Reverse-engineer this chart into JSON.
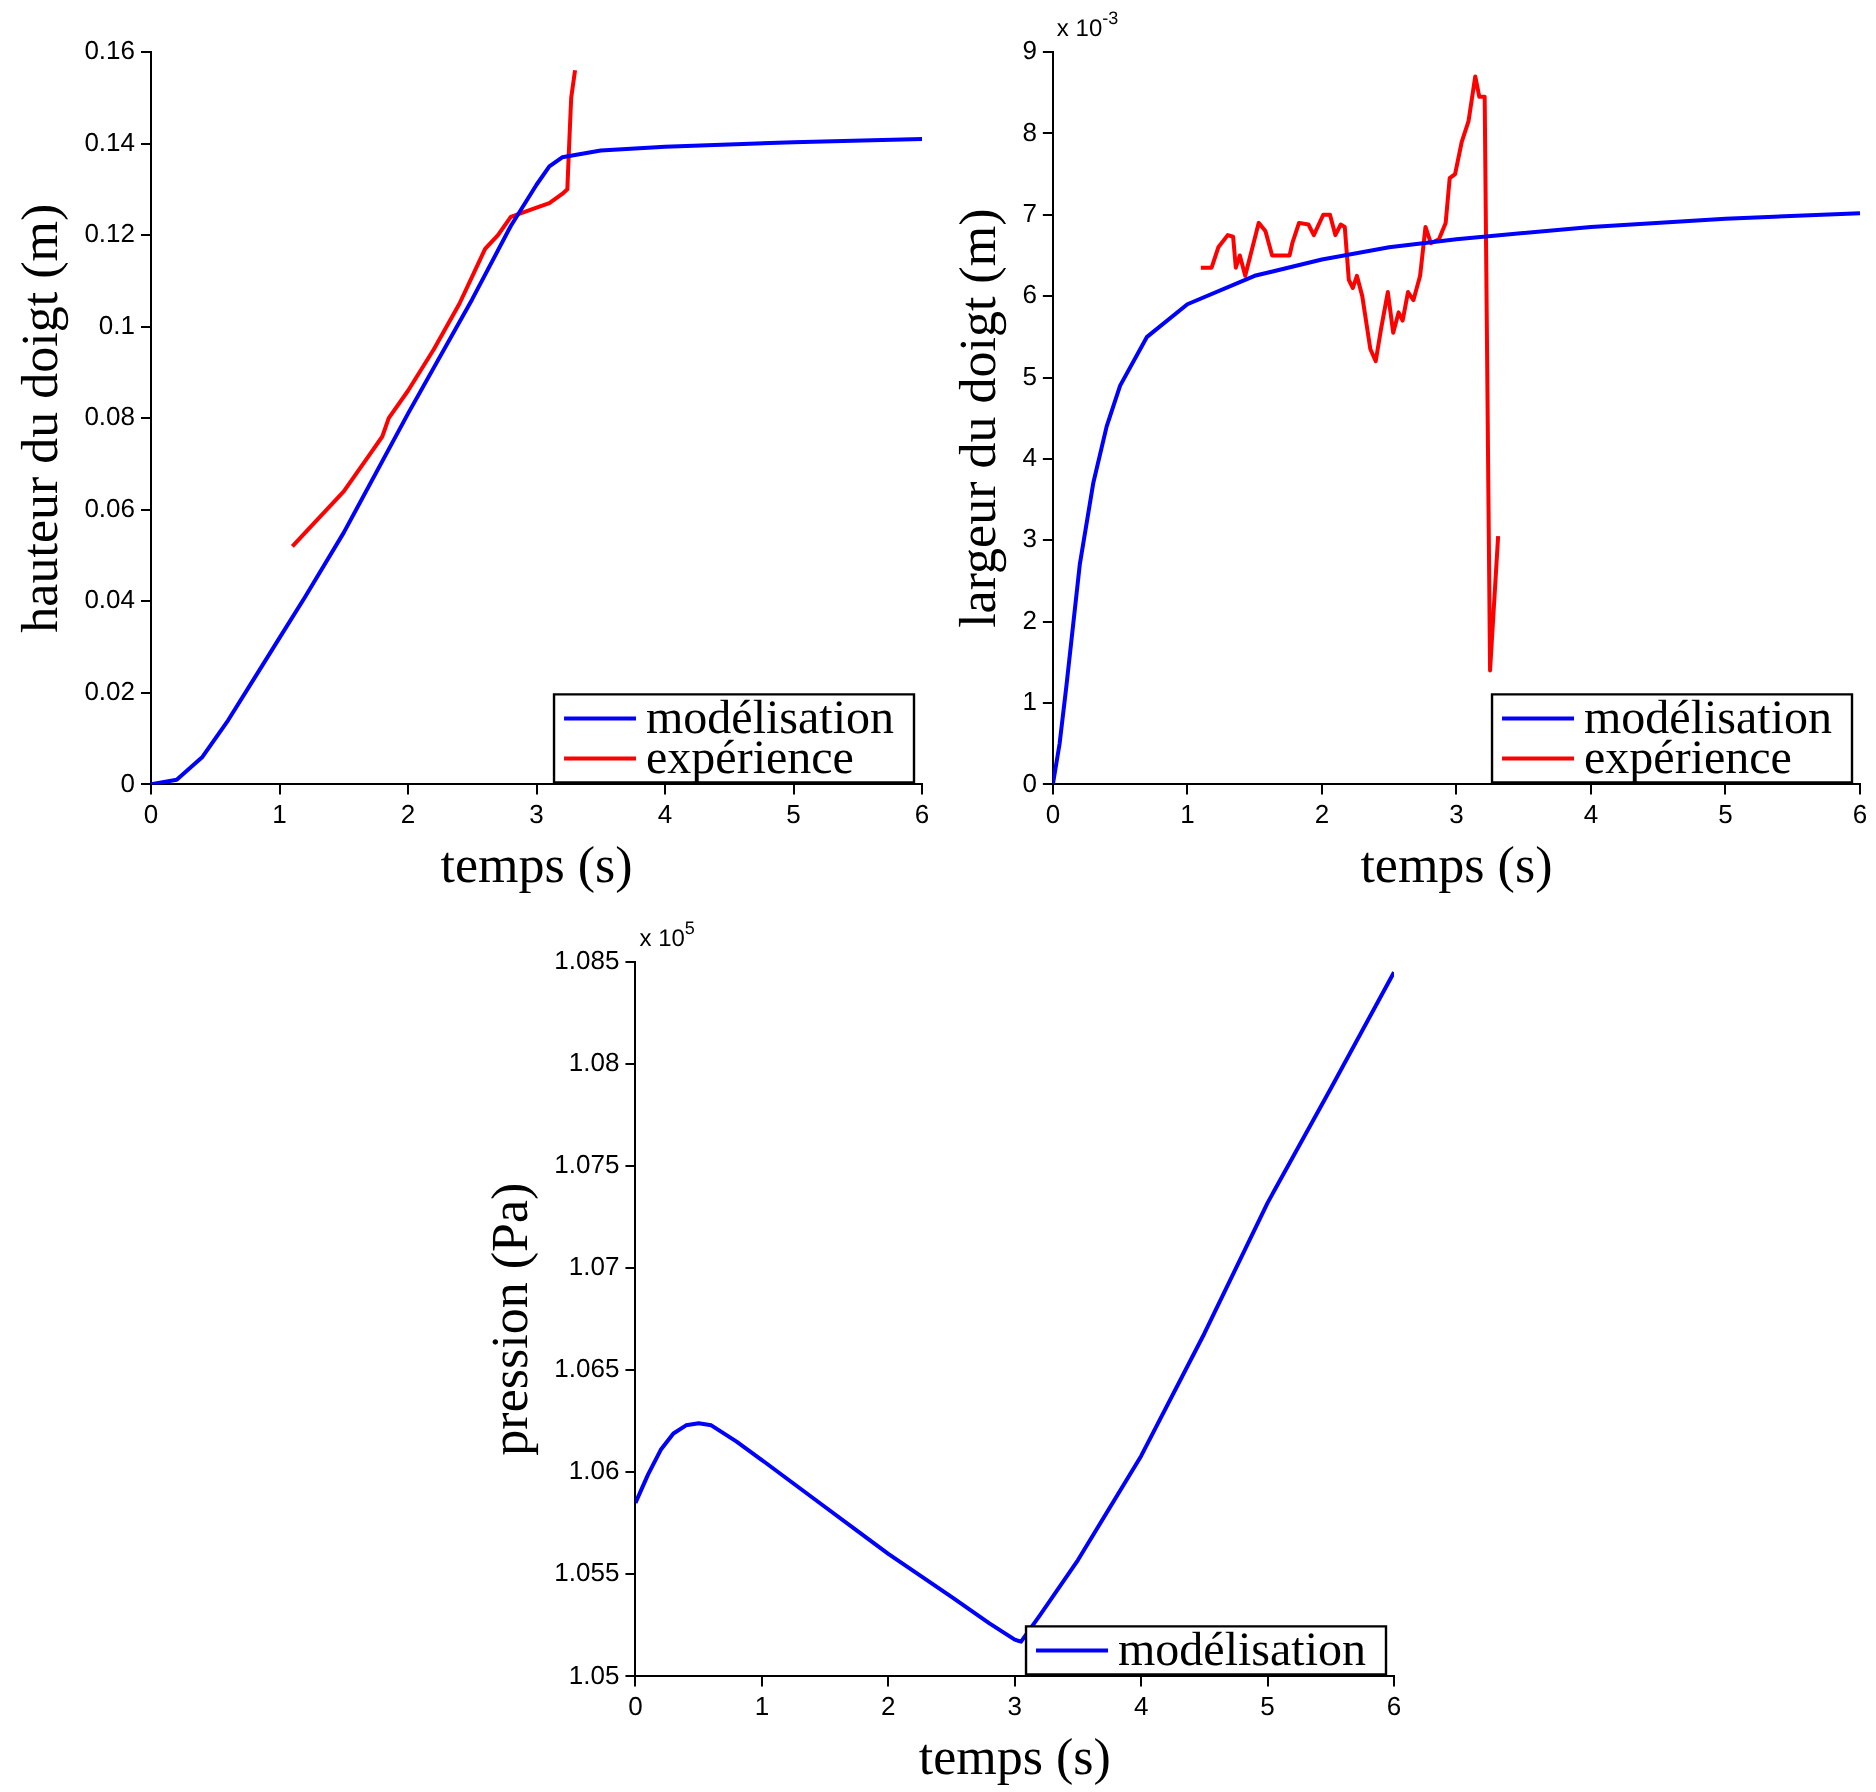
{
  "chart_data": [
    {
      "type": "line",
      "xlabel": "temps (s)",
      "ylabel": "hauteur du doigt (m)",
      "xlim": [
        0,
        6
      ],
      "xticks": [
        0,
        1,
        2,
        3,
        4,
        5,
        6
      ],
      "ylim": [
        0,
        0.16
      ],
      "yticks": [
        0,
        0.02,
        0.04,
        0.06,
        0.08,
        0.1,
        0.12,
        0.14,
        0.16
      ],
      "legend": "bottom right",
      "grid": false,
      "series": [
        {
          "name": "modélisation",
          "color": "#0000ff",
          "x": [
            0,
            0.2,
            0.4,
            0.6,
            0.8,
            1.0,
            1.2,
            1.5,
            2,
            2.5,
            2.8,
            3.0,
            3.1,
            3.2,
            3.5,
            4,
            5,
            6
          ],
          "values": [
            0,
            0.001,
            0.006,
            0.014,
            0.023,
            0.032,
            0.041,
            0.055,
            0.081,
            0.106,
            0.122,
            0.131,
            0.135,
            0.137,
            0.1385,
            0.1393,
            0.1403,
            0.141
          ]
        },
        {
          "name": "expérience",
          "color": "#ff0000",
          "x": [
            1.1,
            1.3,
            1.5,
            1.7,
            1.8,
            1.85,
            2.0,
            2.2,
            2.4,
            2.5,
            2.6,
            2.7,
            2.8,
            3.0,
            3.1,
            3.2,
            3.24,
            3.25,
            3.27,
            3.3
          ],
          "values": [
            0.052,
            0.058,
            0.064,
            0.072,
            0.076,
            0.08,
            0.086,
            0.095,
            0.105,
            0.111,
            0.117,
            0.12,
            0.124,
            0.126,
            0.127,
            0.129,
            0.13,
            0.137,
            0.15,
            0.156
          ]
        }
      ]
    },
    {
      "type": "line",
      "xlabel": "temps (s)",
      "ylabel": "largeur du doigt (m)",
      "annotations": [
        "x 10$^{-3}$"
      ],
      "xlim": [
        0,
        6
      ],
      "xticks": [
        0,
        1,
        2,
        3,
        4,
        5,
        6
      ],
      "ylim": [
        0,
        9
      ],
      "yticks": [
        0,
        1,
        2,
        3,
        4,
        5,
        6,
        7,
        8,
        9
      ],
      "legend": "bottom right",
      "grid": false,
      "series": [
        {
          "name": "modélisation",
          "color": "#0000ff",
          "x": [
            0,
            0.05,
            0.1,
            0.2,
            0.3,
            0.4,
            0.5,
            0.7,
            1,
            1.5,
            2,
            2.5,
            3,
            4,
            5,
            6
          ],
          "values": [
            0,
            0.5,
            1.2,
            2.7,
            3.7,
            4.4,
            4.9,
            5.5,
            5.9,
            6.25,
            6.45,
            6.6,
            6.7,
            6.85,
            6.95,
            7.02
          ]
        },
        {
          "name": "expérience",
          "color": "#ff0000",
          "x": [
            1.1,
            1.18,
            1.23,
            1.3,
            1.34,
            1.36,
            1.39,
            1.43,
            1.53,
            1.58,
            1.63,
            1.76,
            1.78,
            1.83,
            1.9,
            1.94,
            2.01,
            2.06,
            2.1,
            2.14,
            2.17,
            2.2,
            2.23,
            2.26,
            2.3,
            2.36,
            2.4,
            2.44,
            2.49,
            2.53,
            2.57,
            2.6,
            2.64,
            2.68,
            2.73,
            2.77,
            2.81,
            2.87,
            2.92,
            2.95,
            2.99,
            3.04,
            3.09,
            3.14,
            3.17,
            3.21,
            3.25,
            3.31
          ],
          "values": [
            6.35,
            6.35,
            6.6,
            6.75,
            6.73,
            6.35,
            6.5,
            6.25,
            6.9,
            6.8,
            6.5,
            6.5,
            6.65,
            6.9,
            6.88,
            6.75,
            7.0,
            7.0,
            6.75,
            6.88,
            6.85,
            6.2,
            6.1,
            6.25,
            6.0,
            5.35,
            5.2,
            5.6,
            6.05,
            5.55,
            5.8,
            5.7,
            6.05,
            5.95,
            6.25,
            6.85,
            6.65,
            6.7,
            6.9,
            7.45,
            7.5,
            7.9,
            8.15,
            8.7,
            8.45,
            8.45,
            1.4,
            3.05
          ]
        }
      ]
    },
    {
      "type": "line",
      "xlabel": "temps (s)",
      "ylabel": "pression (Pa)",
      "annotations": [
        "x 10$^{5}$"
      ],
      "xlim": [
        0,
        6
      ],
      "xticks": [
        0,
        1,
        2,
        3,
        4,
        5,
        6
      ],
      "ylim": [
        1.05,
        1.085
      ],
      "yticks": [
        1.05,
        1.055,
        1.06,
        1.065,
        1.07,
        1.075,
        1.08,
        1.085
      ],
      "legend": "bottom right",
      "grid": false,
      "series": [
        {
          "name": "modélisation",
          "color": "#0000ff",
          "x": [
            0,
            0.1,
            0.2,
            0.3,
            0.4,
            0.5,
            0.6,
            0.8,
            1,
            1.5,
            2,
            2.5,
            2.8,
            3.0,
            3.05,
            3.2,
            3.5,
            4,
            4.5,
            5,
            5.5,
            6
          ],
          "values": [
            1.0585,
            1.0599,
            1.0611,
            1.0619,
            1.0623,
            1.0624,
            1.0623,
            1.0615,
            1.0606,
            1.0583,
            1.056,
            1.0539,
            1.0526,
            1.0518,
            1.0517,
            1.053,
            1.0557,
            1.0608,
            1.0668,
            1.0732,
            1.0788,
            1.0845
          ]
        }
      ]
    }
  ]
}
